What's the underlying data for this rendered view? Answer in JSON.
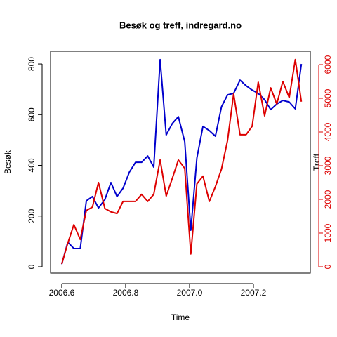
{
  "chart_data": {
    "type": "line",
    "title": "Besøk og treff, indregard.no",
    "xlabel": "Time",
    "ylabel": "Besøk",
    "y2label": "Treff",
    "x": [
      2006.6,
      2006.619,
      2006.638,
      2006.658,
      2006.677,
      2006.696,
      2006.715,
      2006.735,
      2006.754,
      2006.773,
      2006.792,
      2006.812,
      2006.831,
      2006.85,
      2006.869,
      2006.888,
      2006.908,
      2006.927,
      2006.946,
      2006.965,
      2006.985,
      2007.004,
      2007.023,
      2007.042,
      2007.062,
      2007.081,
      2007.1,
      2007.119,
      2007.138,
      2007.158,
      2007.177,
      2007.196,
      2007.215,
      2007.235,
      2007.254,
      2007.273,
      2007.292,
      2007.312,
      2007.331,
      2007.35
    ],
    "series": [
      {
        "name": "Besøk",
        "color": "#0000cc",
        "axis": "y",
        "values": [
          10,
          97,
          72,
          72,
          260,
          277,
          232,
          265,
          332,
          277,
          310,
          374,
          412,
          412,
          437,
          393,
          817,
          520,
          565,
          592,
          493,
          144,
          429,
          554,
          537,
          515,
          631,
          678,
          684,
          736,
          714,
          697,
          684,
          659,
          620,
          642,
          656,
          650,
          623,
          800
        ]
      },
      {
        "name": "Treff",
        "color": "#dd0000",
        "axis": "y2",
        "values": [
          80,
          700,
          1250,
          810,
          1670,
          1770,
          2500,
          1730,
          1630,
          1580,
          1940,
          1940,
          1940,
          2150,
          1940,
          2150,
          3170,
          2100,
          2620,
          3170,
          2920,
          380,
          2460,
          2690,
          1940,
          2380,
          2900,
          3750,
          5130,
          3920,
          3920,
          4170,
          5480,
          4480,
          5310,
          4830,
          5500,
          5020,
          6150,
          4900
        ]
      }
    ],
    "xlim": [
      2006.565,
      2007.378
    ],
    "xticks": [
      2006.6,
      2006.8,
      {
        "value": 2007.0,
        "label": "2007.0"
      },
      2007.2
    ],
    "ylim": [
      -25,
      850
    ],
    "yticks": [
      0,
      200,
      400,
      600,
      800
    ],
    "y2lim": [
      -188,
      6396
    ],
    "y2ticks": [
      0,
      1000,
      2000,
      3000,
      4000,
      5000,
      6000
    ]
  }
}
